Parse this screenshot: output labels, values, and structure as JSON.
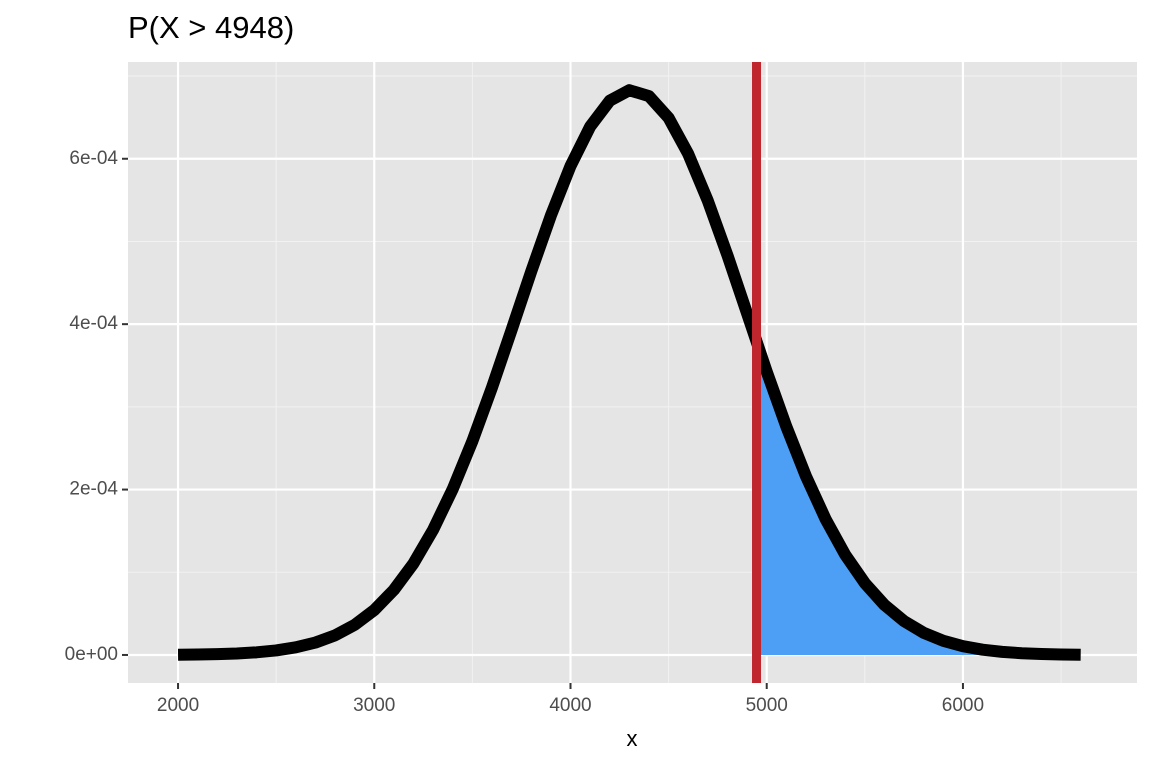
{
  "chart_data": {
    "type": "density",
    "title": "P(X > 4948)",
    "x_label": "x",
    "xlim": [
      1745,
      6887
    ],
    "ylim": [
      -3.39e-05,
      0.000717
    ],
    "xticks": [
      2000,
      3000,
      4000,
      5000,
      6000
    ],
    "xminorticks": [
      2500,
      3500,
      4500,
      5500,
      6500
    ],
    "yticks": [
      {
        "value": 0,
        "label": "0e+00"
      },
      {
        "value": 0.0002,
        "label": "2e-04"
      },
      {
        "value": 0.0004,
        "label": "4e-04"
      },
      {
        "value": 0.0006,
        "label": "6e-04"
      }
    ],
    "yminorticks": [
      0.0001,
      0.0003,
      0.0005,
      0.0007
    ],
    "grid": true,
    "threshold": {
      "value": 4948,
      "color": "#c0262d"
    },
    "shade": {
      "color": "#4d9ef5",
      "x": [
        4948,
        5000,
        5100,
        5200,
        5300,
        5400,
        5500,
        5600,
        5700,
        5800,
        5900,
        6000,
        6100,
        6200,
        6300,
        6400,
        6500,
        6600
      ],
      "values": [
        0.0003789,
        0.0003426,
        0.0002761,
        0.0002161,
        0.0001643,
        0.0001212,
        8.69e-05,
        6.05e-05,
        4.09e-05,
        2.68e-05,
        1.71e-05,
        1.06e-05,
        6.36e-06,
        3.71e-06,
        2.1e-06,
        1.16e-06,
        6.2e-07,
        3.2e-07
      ]
    },
    "series": [
      {
        "color": "#000000",
        "x": [
          2000,
          2100,
          2200,
          2300,
          2400,
          2500,
          2600,
          2700,
          2800,
          2900,
          3000,
          3100,
          3200,
          3300,
          3400,
          3500,
          3600,
          3700,
          3800,
          3900,
          4000,
          4100,
          4200,
          4300,
          4400,
          4500,
          4600,
          4700,
          4800,
          4900,
          5000,
          5100,
          5200,
          5300,
          5400,
          5500,
          5600,
          5700,
          5800,
          5900,
          6000,
          6100,
          6200,
          6300,
          6400,
          6500,
          6600
        ],
        "values": [
          2.67e-07,
          5.17e-07,
          9.75e-07,
          1.79e-06,
          3.18e-06,
          5.49e-06,
          9.2e-06,
          1.5e-05,
          2.37e-05,
          3.64e-05,
          5.43e-05,
          7.87e-05,
          0.0001107,
          0.0001514,
          0.0002007,
          0.0002585,
          0.0003235,
          0.0003932,
          0.0004638,
          0.0005313,
          0.0005912,
          0.0006388,
          0.0006702,
          0.0006829,
          0.0006757,
          0.0006494,
          0.0006059,
          0.0005491,
          0.0004832,
          0.0004129,
          0.0003426,
          0.0002761,
          0.0002161,
          0.0001643,
          0.0001212,
          8.69e-05,
          6.05e-05,
          4.09e-05,
          2.68e-05,
          1.71e-05,
          1.06e-05,
          6.36e-06,
          3.71e-06,
          2.1e-06,
          1.16e-06,
          6.2e-07,
          3.2e-07
        ]
      }
    ]
  }
}
